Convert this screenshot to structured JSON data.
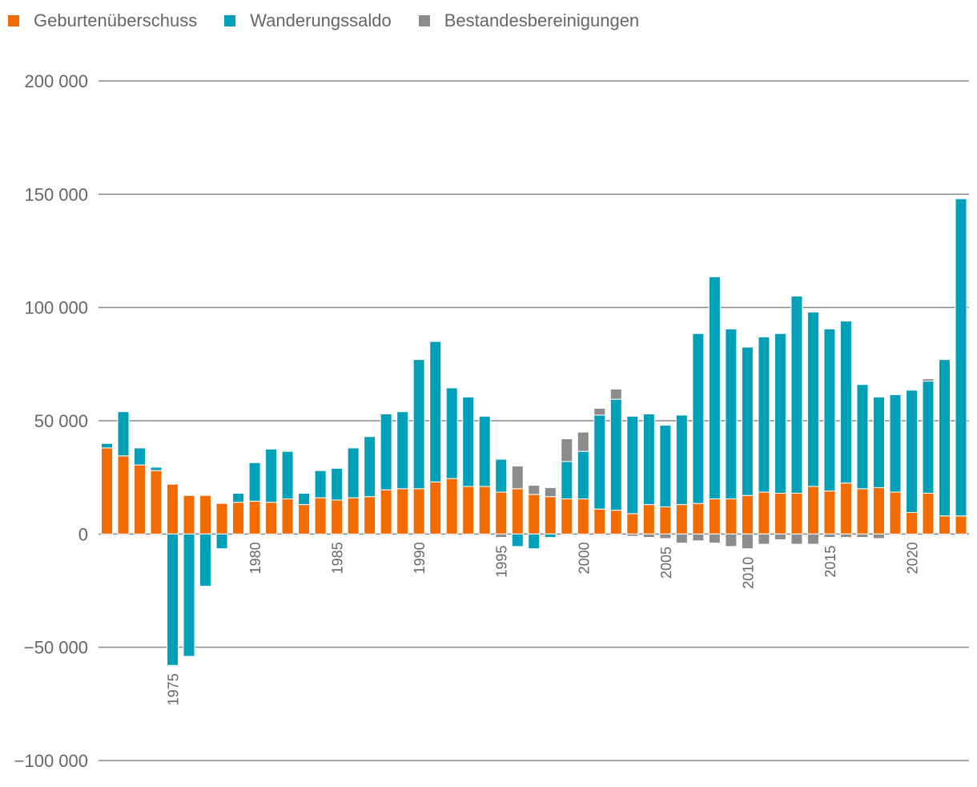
{
  "chart_data": {
    "type": "bar",
    "stacked": true,
    "legend_position": "top-left",
    "grid": true,
    "ylim": [
      -100000,
      200000
    ],
    "yticks": [
      -100000,
      -50000,
      0,
      50000,
      100000,
      150000,
      200000
    ],
    "ytick_labels": [
      "−100 000",
      "−50 000",
      "0",
      "50 000",
      "100 000",
      "150 000",
      "200 000"
    ],
    "xtick_labels": [
      "1975",
      "1980",
      "1985",
      "1990",
      "1995",
      "2000",
      "2005",
      "2010",
      "2015",
      "2020"
    ],
    "categories": [
      1971,
      1972,
      1973,
      1974,
      1975,
      1976,
      1977,
      1978,
      1979,
      1980,
      1981,
      1982,
      1983,
      1984,
      1985,
      1986,
      1987,
      1988,
      1989,
      1990,
      1991,
      1992,
      1993,
      1994,
      1995,
      1996,
      1997,
      1998,
      1999,
      2000,
      2001,
      2002,
      2003,
      2004,
      2005,
      2006,
      2007,
      2008,
      2009,
      2010,
      2011,
      2012,
      2013,
      2014,
      2015,
      2016,
      2017,
      2018,
      2019,
      2020,
      2021,
      2022,
      2023
    ],
    "series": [
      {
        "name": "Geburtenüberschuss",
        "color": "#F26B00",
        "values": [
          38000,
          34500,
          30500,
          28000,
          22000,
          17000,
          17000,
          13500,
          14000,
          14500,
          14000,
          15500,
          13000,
          16000,
          15000,
          16000,
          16500,
          19500,
          20000,
          20000,
          23000,
          24500,
          21000,
          21000,
          18500,
          20000,
          17500,
          16500,
          15500,
          15500,
          11000,
          10500,
          9000,
          13000,
          12000,
          13000,
          13500,
          15500,
          15500,
          17000,
          18500,
          18000,
          18000,
          21000,
          19000,
          22500,
          20000,
          20500,
          18500,
          9500,
          18000,
          8000,
          8000
        ]
      },
      {
        "name": "Wanderungssaldo",
        "color": "#00A0B8",
        "values": [
          2000,
          19500,
          7500,
          1500,
          -58000,
          -54000,
          -23000,
          -6500,
          4000,
          17000,
          23500,
          21000,
          5000,
          12000,
          14000,
          22000,
          26500,
          33500,
          34000,
          57000,
          62000,
          40000,
          39500,
          31000,
          14500,
          -5500,
          -6500,
          -1500,
          16500,
          21000,
          41500,
          49000,
          43000,
          40000,
          36000,
          39500,
          75000,
          98000,
          75000,
          65500,
          68500,
          70500,
          87000,
          77000,
          71500,
          71500,
          46000,
          40000,
          43000,
          54000,
          49500,
          69000,
          140000
        ]
      },
      {
        "name": "Bestandesbereinigungen",
        "color": "#8C8C8C",
        "values": [
          0,
          0,
          0,
          0,
          0,
          0,
          0,
          0,
          0,
          0,
          0,
          0,
          0,
          0,
          0,
          0,
          0,
          0,
          0,
          0,
          0,
          0,
          0,
          0,
          -1500,
          10000,
          4000,
          4000,
          10000,
          8500,
          3000,
          4500,
          -1000,
          -1500,
          -2000,
          -4000,
          -3000,
          -4000,
          -5500,
          -6500,
          -4500,
          -2500,
          -4500,
          -4500,
          -1500,
          -1500,
          -1500,
          -2000,
          0,
          0,
          1000,
          0,
          0
        ]
      }
    ]
  }
}
